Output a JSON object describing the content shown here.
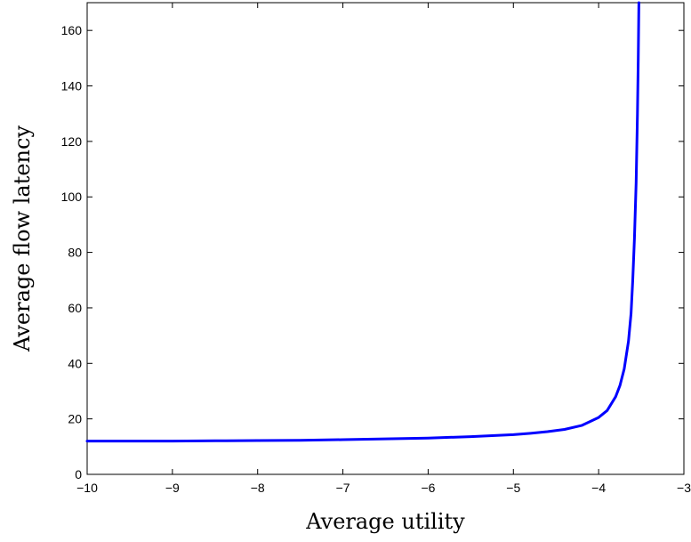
{
  "chart_data": {
    "type": "line",
    "title": "",
    "xlabel": "Average utility",
    "ylabel": "Average flow latency",
    "xlim": [
      -10,
      -3
    ],
    "ylim": [
      0,
      170
    ],
    "x_ticks": [
      -10,
      -9,
      -8,
      -7,
      -6,
      -5,
      -4,
      -3
    ],
    "x_tick_labels": [
      "−10",
      "−9",
      "−8",
      "−7",
      "−6",
      "−5",
      "−4",
      "−3"
    ],
    "y_ticks": [
      0,
      20,
      40,
      60,
      80,
      100,
      120,
      140,
      160
    ],
    "y_tick_labels": [
      "0",
      "20",
      "40",
      "60",
      "80",
      "100",
      "120",
      "140",
      "160"
    ],
    "grid": false,
    "legend": "none",
    "series": [
      {
        "color": "#0000ff",
        "x": [
          -10,
          -9.5,
          -9,
          -8.5,
          -8,
          -7.5,
          -7,
          -6.5,
          -6,
          -5.5,
          -5,
          -4.8,
          -4.6,
          -4.4,
          -4.2,
          -4.0,
          -3.9,
          -3.8,
          -3.75,
          -3.7,
          -3.65,
          -3.62,
          -3.6,
          -3.58,
          -3.56,
          -3.545,
          -3.535,
          -3.528
        ],
        "y": [
          12,
          12,
          12,
          12.1,
          12.2,
          12.3,
          12.5,
          12.8,
          13.1,
          13.6,
          14.3,
          14.8,
          15.4,
          16.2,
          17.6,
          20.5,
          23,
          28,
          32,
          38,
          48,
          58,
          70,
          85,
          105,
          130,
          150,
          170
        ]
      }
    ]
  }
}
